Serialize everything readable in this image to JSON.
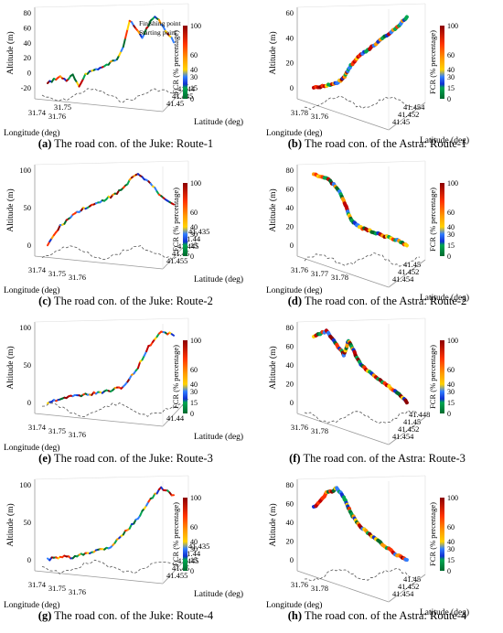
{
  "panels": [
    {
      "id": "a",
      "caption_letter": "(a)",
      "caption_text": " The road con. of the Juke: Route-1",
      "vehicle": "juke",
      "annotations": [
        "Finishing point",
        "Starting point"
      ],
      "chart_data": {
        "type": "line3d",
        "zlabel": "Altitude (m)",
        "xlabel": "Longitude (deg)",
        "ylabel": "Latitude (deg)",
        "z_ticks": [
          "80",
          "60",
          "40",
          "20",
          "0",
          "-20"
        ],
        "x_ticks": [
          "31.74",
          "31.76"
        ],
        "x_ticks_extra": [
          "31.75"
        ],
        "y_ticks": [
          "41.45",
          "41.445",
          "41.44"
        ],
        "colorbar": {
          "label": "FCR (% percentage)",
          "ticks": [
            "100",
            "60",
            "40",
            "30",
            "15",
            "0"
          ]
        },
        "series": [
          {
            "x": [
              0.0,
              0.05,
              0.1,
              0.15,
              0.2,
              0.25,
              0.3,
              0.35,
              0.4,
              0.45,
              0.5,
              0.55,
              0.6,
              0.65,
              0.7,
              0.75,
              0.8,
              0.85,
              0.9,
              0.95,
              1.0
            ],
            "z": [
              0,
              5,
              8,
              4,
              10,
              -5,
              12,
              15,
              18,
              20,
              25,
              30,
              45,
              75,
              65,
              55,
              70,
              80,
              72,
              60,
              50
            ]
          }
        ]
      }
    },
    {
      "id": "b",
      "caption_letter": "(b)",
      "caption_text": " The road con. of the Astra: Route-1",
      "vehicle": "astra",
      "annotations": [],
      "chart_data": {
        "type": "line3d",
        "zlabel": "Altitude (m)",
        "xlabel": "Longitude (deg)",
        "ylabel": "Latitude (deg)",
        "z_ticks": [
          "60",
          "40",
          "20",
          "0"
        ],
        "x_ticks": [
          "31.78",
          "31.76"
        ],
        "y_ticks": [
          "41.45",
          "41.452",
          "41.454"
        ],
        "colorbar": {
          "label": "FCR (% percentage)",
          "ticks": [
            "100",
            "60",
            "40",
            "30",
            "15",
            "0"
          ]
        },
        "series": [
          {
            "x": [
              0.0,
              0.1,
              0.2,
              0.3,
              0.4,
              0.5,
              0.6,
              0.7,
              0.8,
              0.9,
              1.0
            ],
            "z": [
              0,
              2,
              5,
              10,
              18,
              25,
              32,
              40,
              50,
              60,
              70
            ]
          }
        ]
      }
    },
    {
      "id": "c",
      "caption_letter": "(c)",
      "caption_text": " The road con. of the Juke: Route-2",
      "vehicle": "juke",
      "annotations": [],
      "chart_data": {
        "type": "line3d",
        "zlabel": "Altitude (m)",
        "xlabel": "Longitude (deg)",
        "ylabel": "Latitude (deg)",
        "z_ticks": [
          "100",
          "50",
          "0"
        ],
        "x_ticks": [
          "31.74",
          "31.75",
          "31.76"
        ],
        "y_ticks": [
          "41.455",
          "41.45",
          "41.445",
          "41.44",
          "41.435"
        ],
        "colorbar": {
          "label": "FCR (% percentage)",
          "ticks": [
            "100",
            "60",
            "40",
            "30",
            "15",
            "0"
          ]
        },
        "series": [
          {
            "x": [
              0.0,
              0.1,
              0.2,
              0.3,
              0.4,
              0.5,
              0.6,
              0.7,
              0.8,
              0.9,
              1.0
            ],
            "z": [
              5,
              30,
              45,
              55,
              60,
              70,
              80,
              100,
              90,
              70,
              60
            ]
          }
        ]
      }
    },
    {
      "id": "d",
      "caption_letter": "(d)",
      "caption_text": " The road con. of the Astra: Route-2",
      "vehicle": "astra",
      "annotations": [],
      "chart_data": {
        "type": "line3d",
        "zlabel": "Altitude (m)",
        "xlabel": "Longitude (deg)",
        "ylabel": "Latitude (deg)",
        "z_ticks": [
          "80",
          "60",
          "40",
          "20",
          "0"
        ],
        "x_ticks": [
          "31.76",
          "31.77",
          "31.78"
        ],
        "y_ticks": [
          "41.454",
          "41.452",
          "41.45"
        ],
        "colorbar": {
          "label": "FCR (% percentage)",
          "ticks": [
            "100",
            "60",
            "40",
            "30",
            "15",
            "0"
          ]
        },
        "series": [
          {
            "x": [
              0.0,
              0.1,
              0.2,
              0.3,
              0.4,
              0.5,
              0.6,
              0.7,
              0.8,
              0.9,
              1.0
            ],
            "z": [
              85,
              80,
              70,
              55,
              40,
              30,
              25,
              20,
              15,
              10,
              5
            ]
          }
        ]
      }
    },
    {
      "id": "e",
      "caption_letter": "(e)",
      "caption_text": " The road con. of the Juke: Route-3",
      "vehicle": "juke",
      "annotations": [],
      "chart_data": {
        "type": "line3d",
        "zlabel": "Altitude (m)",
        "xlabel": "Longitude (deg)",
        "ylabel": "Latitude (deg)",
        "z_ticks": [
          "100",
          "50",
          "0"
        ],
        "x_ticks": [
          "31.74",
          "31.75",
          "31.76"
        ],
        "y_ticks": [
          "41.44"
        ],
        "colorbar": {
          "label": "FCR (% percentage)",
          "ticks": [
            "100",
            "60",
            "40",
            "30",
            "15",
            "0"
          ]
        },
        "series": [
          {
            "x": [
              0.0,
              0.1,
              0.2,
              0.3,
              0.4,
              0.5,
              0.6,
              0.7,
              0.8,
              0.9,
              1.0
            ],
            "z": [
              0,
              5,
              8,
              10,
              12,
              15,
              20,
              40,
              70,
              90,
              85
            ]
          }
        ]
      }
    },
    {
      "id": "f",
      "caption_letter": "(f)",
      "caption_text": " The road con. of the Astra: Route-3",
      "vehicle": "astra",
      "annotations": [],
      "chart_data": {
        "type": "line3d",
        "zlabel": "Altitude (m)",
        "xlabel": "",
        "ylabel": "",
        "z_ticks": [
          "80",
          "60",
          "40",
          "20",
          "0"
        ],
        "x_ticks": [
          "31.76",
          "31.78"
        ],
        "y_ticks": [
          "41.454",
          "41.452",
          "41.45",
          "41.448"
        ],
        "colorbar": {
          "label": "FCR (% percentage)",
          "ticks": [
            "100",
            "60",
            "40",
            "30",
            "15",
            "0"
          ]
        },
        "series": [
          {
            "x": [
              0.0,
              0.1,
              0.2,
              0.3,
              0.4,
              0.5,
              0.6,
              0.7,
              0.8,
              0.9,
              1.0
            ],
            "z": [
              80,
              85,
              70,
              60,
              75,
              65,
              50,
              40,
              30,
              20,
              10
            ]
          }
        ]
      }
    },
    {
      "id": "g",
      "caption_letter": "(g)",
      "caption_text": " The road con. of the Juke: Route-4",
      "vehicle": "juke",
      "annotations": [],
      "chart_data": {
        "type": "line3d",
        "zlabel": "Altitude (m)",
        "xlabel": "Longitude (deg)",
        "ylabel": "Latitude (deg)",
        "z_ticks": [
          "100",
          "50",
          "0"
        ],
        "x_ticks": [
          "31.74",
          "31.75",
          "31.76"
        ],
        "y_ticks": [
          "41.455",
          "41.45",
          "41.445",
          "41.44",
          "41.435"
        ],
        "colorbar": {
          "label": "FCR (% percentage)",
          "ticks": [
            "100",
            "60",
            "40",
            "30",
            "15",
            "0"
          ]
        },
        "series": [
          {
            "x": [
              0.0,
              0.1,
              0.2,
              0.3,
              0.4,
              0.5,
              0.6,
              0.7,
              0.8,
              0.9,
              1.0
            ],
            "z": [
              0,
              5,
              3,
              10,
              15,
              20,
              40,
              60,
              90,
              110,
              100
            ]
          }
        ]
      }
    },
    {
      "id": "h",
      "caption_letter": "(h)",
      "caption_text": " The road con. of the Astra: Route-4",
      "vehicle": "astra",
      "annotations": [],
      "chart_data": {
        "type": "line3d",
        "zlabel": "Altitude (m)",
        "xlabel": "Longitude (deg)",
        "ylabel": "Latitude (deg)",
        "z_ticks": [
          "80",
          "60",
          "40",
          "20",
          "0"
        ],
        "x_ticks": [
          "31.76",
          "31.78"
        ],
        "y_ticks": [
          "41.454",
          "41.452",
          "41.45"
        ],
        "colorbar": {
          "label": "FCR (% percentage)",
          "ticks": [
            "100",
            "60",
            "40",
            "30",
            "15",
            "0"
          ]
        },
        "series": [
          {
            "x": [
              0.0,
              0.1,
              0.2,
              0.3,
              0.4,
              0.5,
              0.6,
              0.7,
              0.8,
              0.9,
              1.0
            ],
            "z": [
              60,
              75,
              80,
              70,
              60,
              50,
              40,
              30,
              20,
              10,
              5
            ]
          }
        ]
      }
    }
  ],
  "palette": {
    "fcr_colors": [
      "#006b2e",
      "#00a651",
      "#1030d0",
      "#2f7dff",
      "#ffd200",
      "#ff9900",
      "#ff3300",
      "#c00000",
      "#8b0000"
    ],
    "shadow": "#555555",
    "axis": "#999999",
    "grid": "#dddddd"
  }
}
